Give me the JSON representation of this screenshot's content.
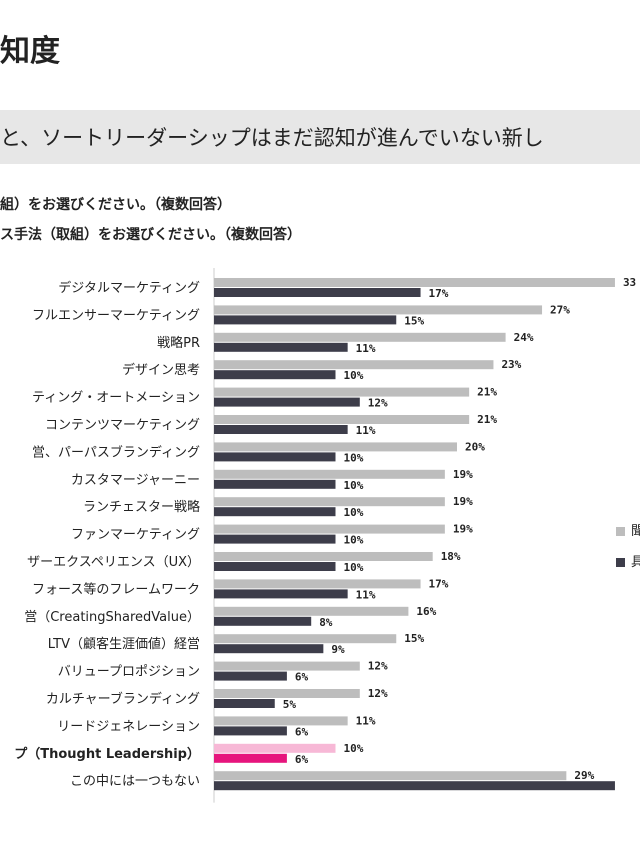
{
  "title": "知度",
  "subtitle": "と、ソートリーダーシップはまだ認知が進んでいない新し",
  "questions": {
    "q1": "組）をお選びください。（複数回答）",
    "q2": "ス手法（取組）をお選びください。（複数回答）"
  },
  "legend": [
    {
      "label": "聞",
      "color": "#bdbdbd"
    },
    {
      "label": "具",
      "color": "#3d3d4a"
    }
  ],
  "colors": {
    "light": "#bdbdbd",
    "dark": "#3d3d4a",
    "highlight_light": "#f7b8d6",
    "highlight_dark": "#e6157d"
  },
  "chart_data": {
    "type": "bar",
    "orientation": "horizontal",
    "categories": [
      "デジタルマーケティング",
      "フルエンサーマーケティング",
      "戦略PR",
      "デザイン思考",
      "ティング・オートメーション",
      "コンテンツマーケティング",
      "営、パーパスブランディング",
      "カスタマージャーニー",
      "ランチェスター戦略",
      "ファンマーケティング",
      "ザーエクスペリエンス（UX）",
      "フォース等のフレームワーク",
      "営（CreatingSharedValue）",
      "LTV（顧客生涯価値）経営",
      "バリュープロポジション",
      "カルチャーブランディング",
      "リードジェネレーション",
      "プ（Thought Leadership）",
      "この中には一つもない"
    ],
    "highlight_index": 17,
    "series": [
      {
        "values": [
          33,
          27,
          24,
          23,
          21,
          21,
          20,
          19,
          19,
          19,
          18,
          17,
          16,
          15,
          12,
          12,
          11,
          10,
          29
        ]
      },
      {
        "values": [
          17,
          15,
          11,
          10,
          12,
          11,
          10,
          10,
          10,
          10,
          10,
          11,
          8,
          9,
          6,
          5,
          6,
          6,
          33
        ]
      }
    ],
    "value_labels": [
      [
        "33",
        "27%",
        "24%",
        "23%",
        "21%",
        "21%",
        "20%",
        "19%",
        "19%",
        "19%",
        "18%",
        "17%",
        "16%",
        "15%",
        "12%",
        "12%",
        "11%",
        "10%",
        "29%"
      ],
      [
        "17%",
        "15%",
        "11%",
        "10%",
        "12%",
        "11%",
        "10%",
        "10%",
        "10%",
        "10%",
        "10%",
        "11%",
        "8%",
        "9%",
        "6%",
        "5%",
        "6%",
        "6%",
        ""
      ]
    ],
    "grid": false
  }
}
